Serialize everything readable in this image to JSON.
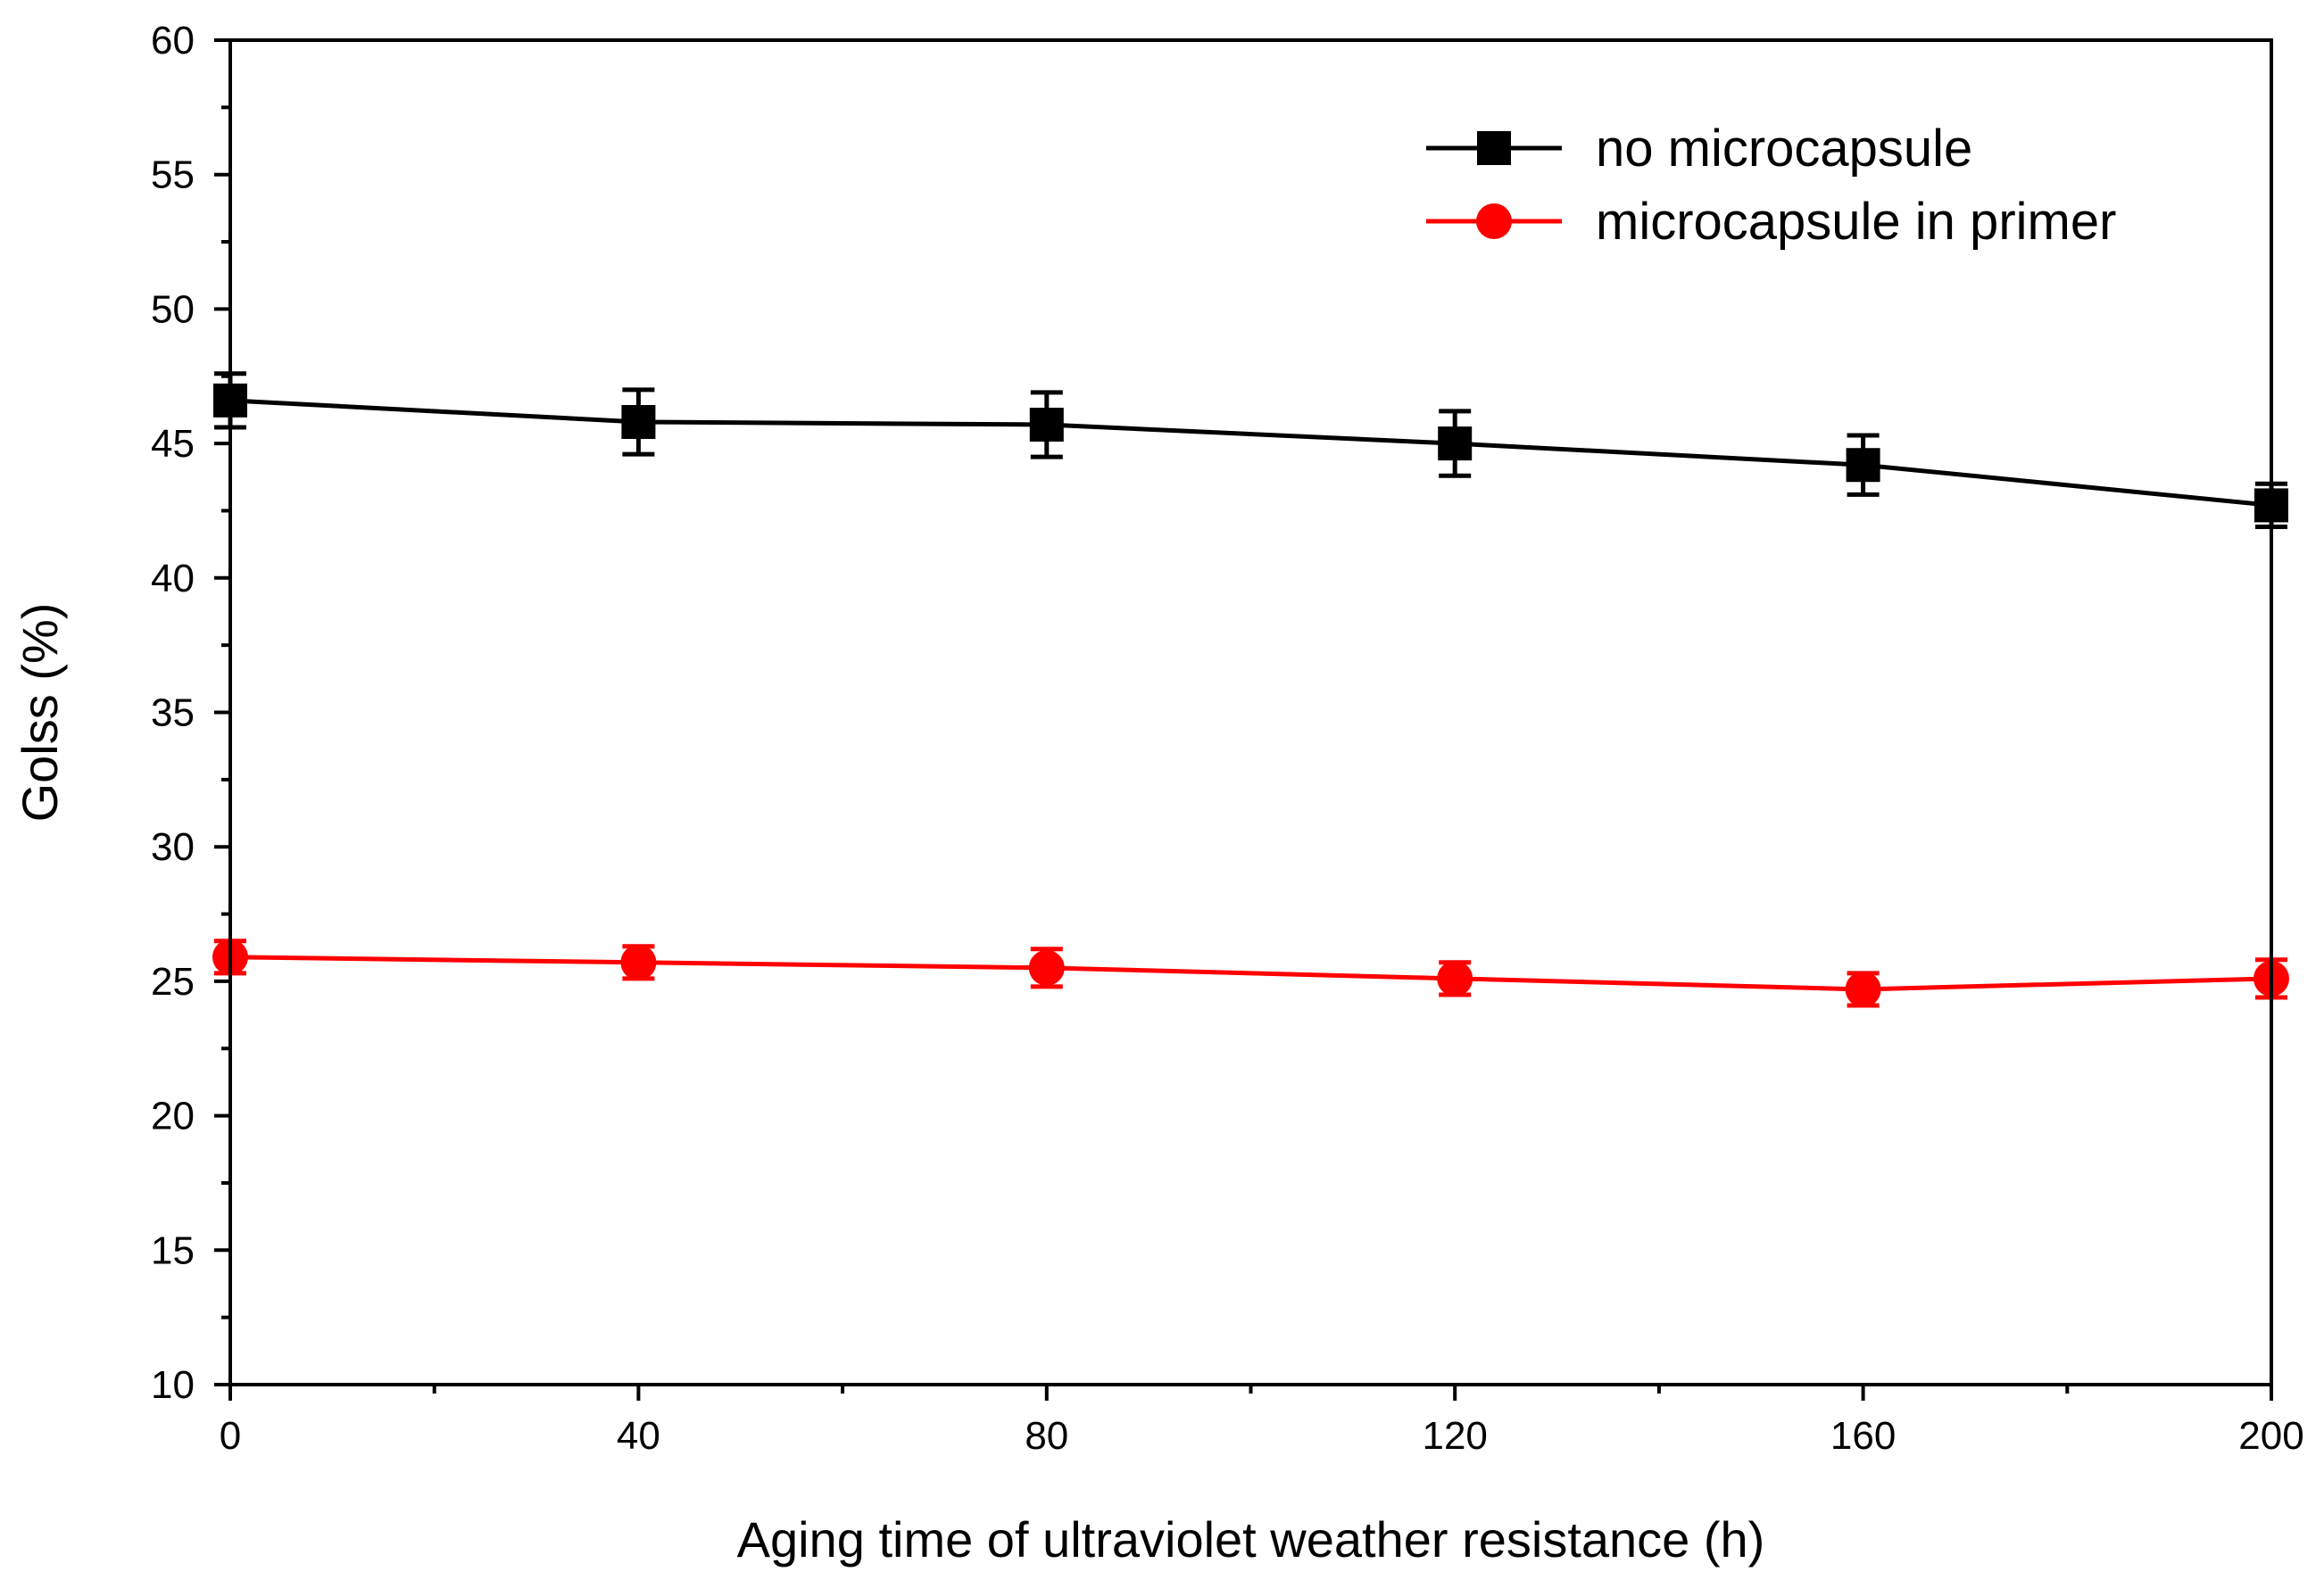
{
  "chart_data": {
    "type": "line",
    "title": "",
    "xlabel": "Aging time of ultraviolet weather resistance (h)",
    "ylabel": "Golss (%)",
    "xlim": [
      0,
      200
    ],
    "ylim": [
      10,
      60
    ],
    "x_ticks": [
      "0",
      "40",
      "80",
      "120",
      "160",
      "200"
    ],
    "y_ticks": [
      "10",
      "15",
      "20",
      "25",
      "30",
      "35",
      "40",
      "45",
      "50",
      "55",
      "60"
    ],
    "x": [
      0,
      40,
      80,
      120,
      160,
      200
    ],
    "legend_position": "top-right",
    "grid": false,
    "series": [
      {
        "name": "no microcapsule",
        "color": "#000000",
        "marker": "square",
        "values": [
          46.6,
          45.8,
          45.7,
          45.0,
          44.2,
          42.7
        ],
        "errors": [
          1.0,
          1.2,
          1.2,
          1.2,
          1.1,
          0.8
        ]
      },
      {
        "name": "microcapsule in primer",
        "color": "#ff0000",
        "marker": "circle",
        "values": [
          25.9,
          25.7,
          25.5,
          25.1,
          24.7,
          25.1
        ],
        "errors": [
          0.6,
          0.6,
          0.7,
          0.6,
          0.6,
          0.7
        ]
      }
    ]
  }
}
